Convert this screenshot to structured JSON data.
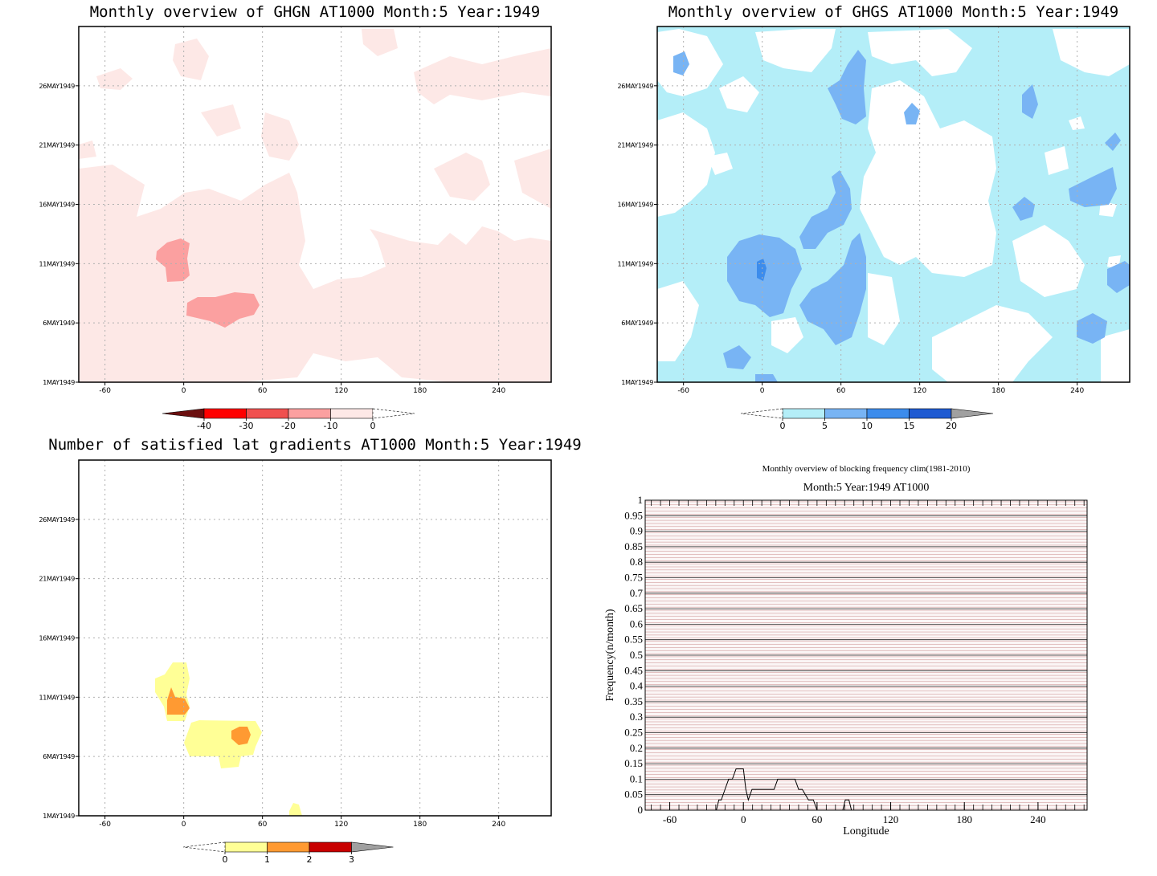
{
  "chart_data": [
    {
      "type": "heatmap",
      "title": "Monthly overview of GHGN AT1000 Month:5 Year:1949",
      "x_ticks": [
        "-60",
        "0",
        "60",
        "120",
        "180",
        "240"
      ],
      "y_ticks": [
        "1MAY1949",
        "6MAY1949",
        "11MAY1949",
        "16MAY1949",
        "21MAY1949",
        "26MAY1949"
      ],
      "xlim": [
        -80,
        280
      ],
      "ylim": [
        "1MAY1949",
        "31MAY1949"
      ],
      "grid": true,
      "colorbar": {
        "levels": [
          "-40",
          "-30",
          "-20",
          "-10",
          "0"
        ],
        "colors": [
          "#6b0f0f",
          "#ff0000",
          "#f0504f",
          "#fba0a0",
          "#fde8e6"
        ],
        "extend_low": true,
        "extend_high_empty": true
      }
    },
    {
      "type": "heatmap",
      "title": "Monthly overview of GHGS AT1000 Month:5 Year:1949",
      "x_ticks": [
        "-60",
        "0",
        "60",
        "120",
        "180",
        "240"
      ],
      "y_ticks": [
        "1MAY1949",
        "6MAY1949",
        "11MAY1949",
        "16MAY1949",
        "21MAY1949",
        "26MAY1949"
      ],
      "xlim": [
        -80,
        280
      ],
      "ylim": [
        "1MAY1949",
        "31MAY1949"
      ],
      "grid": true,
      "colorbar": {
        "levels": [
          "0",
          "5",
          "10",
          "15",
          "20"
        ],
        "colors": [
          "#b4eef8",
          "#78b4f4",
          "#3c8cec",
          "#1e5ad2",
          "#a0a0a0"
        ],
        "extend_low_empty": true,
        "extend_high": true
      }
    },
    {
      "type": "heatmap",
      "title": "Number of satisfied lat gradients AT1000 Month:5 Year:1949",
      "x_ticks": [
        "-60",
        "0",
        "60",
        "120",
        "180",
        "240"
      ],
      "y_ticks": [
        "1MAY1949",
        "6MAY1949",
        "11MAY1949",
        "16MAY1949",
        "21MAY1949",
        "26MAY1949"
      ],
      "xlim": [
        -80,
        280
      ],
      "ylim": [
        "1MAY1949",
        "31MAY1949"
      ],
      "grid": true,
      "colorbar": {
        "levels": [
          "0",
          "1",
          "2",
          "3"
        ],
        "colors": [
          "#ffff96",
          "#ff9a32",
          "#c80000",
          "#a0a0a0"
        ],
        "extend_low_empty": true,
        "extend_high": true
      }
    },
    {
      "type": "line",
      "title": "Monthly overview of blocking frequency clim(1981-2010)",
      "subtitle": "Month:5 Year:1949  AT1000",
      "xlabel": "Longitude",
      "ylabel": "Frequency(n/month)",
      "x_ticks": [
        "-60",
        "0",
        "60",
        "120",
        "180",
        "240"
      ],
      "y_ticks": [
        "0",
        "0.05",
        "0.1",
        "0.15",
        "0.2",
        "0.25",
        "0.3",
        "0.35",
        "0.4",
        "0.45",
        "0.5",
        "0.55",
        "0.6",
        "0.65",
        "0.7",
        "0.75",
        "0.8",
        "0.85",
        "0.9",
        "0.95",
        "1"
      ],
      "xlim": [
        -80,
        280
      ],
      "ylim": [
        0,
        1
      ],
      "series": [
        {
          "x": [
            -22,
            -20,
            -18,
            -15,
            -12,
            -9,
            -6,
            -3,
            0,
            2,
            4,
            7,
            10,
            15,
            20,
            25,
            28,
            35,
            42,
            45,
            48,
            53,
            57,
            60,
            81,
            83,
            86,
            88
          ],
          "values": [
            0,
            0.033,
            0.033,
            0.067,
            0.1,
            0.1,
            0.133,
            0.133,
            0.133,
            0.067,
            0.033,
            0.067,
            0.067,
            0.067,
            0.067,
            0.067,
            0.1,
            0.1,
            0.1,
            0.067,
            0.067,
            0.033,
            0.033,
            0,
            0,
            0.033,
            0.033,
            0
          ]
        }
      ]
    }
  ]
}
